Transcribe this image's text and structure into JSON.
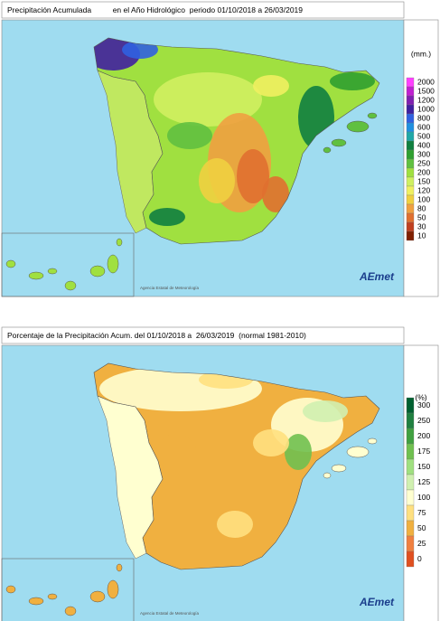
{
  "maps": [
    {
      "title": "Precipitación Acumulada          en el Año Hidrológico  periodo 01/10/2018 a 26/03/2019",
      "unit": "(mm.)",
      "legend": [
        {
          "value": 2000,
          "color": "#ff40ff"
        },
        {
          "value": 1500,
          "color": "#c020d0"
        },
        {
          "value": 1200,
          "color": "#8020b0"
        },
        {
          "value": 1000,
          "color": "#4020a0"
        },
        {
          "value": 800,
          "color": "#3060e0"
        },
        {
          "value": 600,
          "color": "#2090e0"
        },
        {
          "value": 500,
          "color": "#20a8a8"
        },
        {
          "value": 400,
          "color": "#108040"
        },
        {
          "value": 300,
          "color": "#30a030"
        },
        {
          "value": 250,
          "color": "#60c040"
        },
        {
          "value": 200,
          "color": "#a0e040"
        },
        {
          "value": 150,
          "color": "#d0f060"
        },
        {
          "value": 120,
          "color": "#f0f060"
        },
        {
          "value": 100,
          "color": "#f0d040"
        },
        {
          "value": 80,
          "color": "#f0a040"
        },
        {
          "value": 50,
          "color": "#e07030"
        },
        {
          "value": 30,
          "color": "#c04020"
        },
        {
          "value": 10,
          "color": "#802000"
        }
      ],
      "agency": "Agencia Estatal de Meteorología",
      "logo": "AEmet"
    },
    {
      "title": "Porcentaje de la Precipitación Acum. del 01/10/2018 a  26/03/2019  (normal 1981-2010)",
      "unit": "(%)",
      "legend": [
        {
          "value": 300,
          "color": "#006030"
        },
        {
          "value": 250,
          "color": "#208040"
        },
        {
          "value": 200,
          "color": "#40a040"
        },
        {
          "value": 175,
          "color": "#70c050"
        },
        {
          "value": 150,
          "color": "#a0e080"
        },
        {
          "value": 125,
          "color": "#d0f0b0"
        },
        {
          "value": 100,
          "color": "#ffffd0"
        },
        {
          "value": 75,
          "color": "#ffe080"
        },
        {
          "value": 50,
          "color": "#f0b040"
        },
        {
          "value": 25,
          "color": "#f08040"
        },
        {
          "value": 0,
          "color": "#e05020"
        }
      ],
      "agency": "Agencia Estatal de Meteorología",
      "logo": "AEmet"
    }
  ]
}
